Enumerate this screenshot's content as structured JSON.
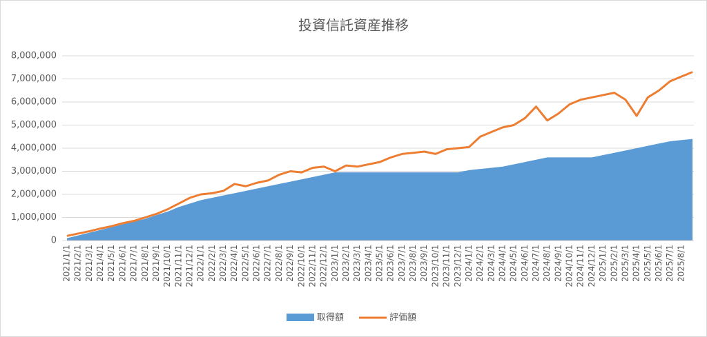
{
  "chart_data": {
    "type": "area-line",
    "title": "投資信託資産推移",
    "categories": [
      "2021/1/1",
      "2021/2/1",
      "2021/3/1",
      "2021/4/1",
      "2021/5/1",
      "2021/6/1",
      "2021/7/1",
      "2021/8/1",
      "2021/9/1",
      "2021/10/1",
      "2021/11/1",
      "2021/12/1",
      "2022/1/1",
      "2022/2/1",
      "2022/3/1",
      "2022/4/1",
      "2022/5/1",
      "2022/6/1",
      "2022/7/1",
      "2022/8/1",
      "2022/9/1",
      "2022/10/1",
      "2022/11/1",
      "2022/12/1",
      "2023/1/1",
      "2023/2/1",
      "2023/3/1",
      "2023/4/1",
      "2023/5/1",
      "2023/6/1",
      "2023/7/1",
      "2023/8/1",
      "2023/9/1",
      "2023/10/1",
      "2023/11/1",
      "2023/12/1",
      "2024/1/1",
      "2024/2/1",
      "2024/3/1",
      "2024/4/1",
      "2024/5/1",
      "2024/6/1",
      "2024/7/1",
      "2024/8/1",
      "2024/9/1",
      "2024/10/1",
      "2024/11/1",
      "2024/12/1",
      "2025/1/1",
      "2025/2/1",
      "2025/3/1",
      "2025/4/1",
      "2025/5/1",
      "2025/6/1",
      "2025/7/1",
      "2025/8/1",
      null
    ],
    "series": [
      {
        "name": "取得額",
        "type": "area",
        "color": "#5b9bd5",
        "values": [
          100000,
          220000,
          340000,
          460000,
          580000,
          700000,
          820000,
          940000,
          1100000,
          1250000,
          1450000,
          1600000,
          1750000,
          1850000,
          1950000,
          2050000,
          2150000,
          2250000,
          2350000,
          2450000,
          2550000,
          2650000,
          2750000,
          2850000,
          2950000,
          2950000,
          2950000,
          2950000,
          2950000,
          2950000,
          2950000,
          2950000,
          2950000,
          2950000,
          2950000,
          2950000,
          3050000,
          3100000,
          3150000,
          3200000,
          3300000,
          3400000,
          3500000,
          3600000,
          3600000,
          3600000,
          3600000,
          3600000,
          3700000,
          3800000,
          3900000,
          4000000,
          4100000,
          4200000,
          4300000,
          4350000,
          4400000
        ]
      },
      {
        "name": "評価額",
        "type": "line",
        "color": "#ed7d31",
        "values": [
          200000,
          300000,
          400000,
          520000,
          620000,
          750000,
          850000,
          1000000,
          1150000,
          1350000,
          1600000,
          1850000,
          2000000,
          2050000,
          2150000,
          2450000,
          2350000,
          2500000,
          2600000,
          2850000,
          3000000,
          2950000,
          3150000,
          3200000,
          3000000,
          3250000,
          3200000,
          3300000,
          3400000,
          3600000,
          3750000,
          3800000,
          3850000,
          3750000,
          3950000,
          4000000,
          4050000,
          4500000,
          4700000,
          4900000,
          5000000,
          5300000,
          5800000,
          5200000,
          5500000,
          5900000,
          6100000,
          6200000,
          6300000,
          6400000,
          6100000,
          5400000,
          6200000,
          6500000,
          6900000,
          7100000,
          7300000
        ]
      }
    ],
    "ylim": [
      0,
      8000000
    ],
    "yticks": [
      0,
      {
        "value": 1000000,
        "label": "1,000,000"
      },
      {
        "value": 2000000,
        "label": "2,000,000"
      },
      {
        "value": 3000000,
        "label": "3,000,000"
      },
      {
        "value": 4000000,
        "label": "4,000,000"
      },
      {
        "value": 5000000,
        "label": "5,000,000"
      },
      {
        "value": 6000000,
        "label": "6,000,000"
      },
      {
        "value": 7000000,
        "label": "7,000,000"
      },
      {
        "value": 8000000,
        "label": "8,000,000"
      }
    ],
    "grid": true,
    "legend": "bottom"
  }
}
